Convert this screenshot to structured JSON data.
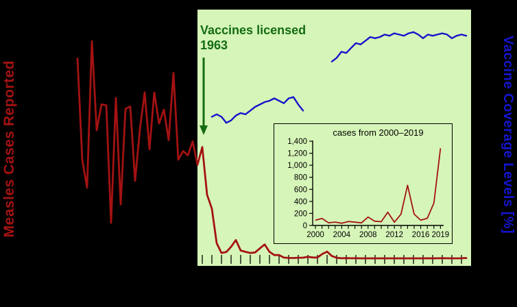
{
  "chart_data": [
    {
      "type": "line",
      "ylabel_left": "Measles Cases Reported",
      "ylabel_left_color": "#a31212",
      "ylabel_right": "Vaccine Coverage Levels [%]",
      "ylabel_right_color": "#1414cc",
      "x_range": [
        1938,
        2020
      ],
      "cases_axis_range": [
        0,
        900000
      ],
      "coverage_axis_range": [
        0,
        100
      ],
      "grid": false,
      "x_ticks": {
        "from": 1964,
        "to": 2018,
        "step": 2
      },
      "shaded_region": {
        "from": 1963,
        "to": 2020,
        "color": "#d6f5b8"
      },
      "annotation": {
        "line1": "Vaccines licensed",
        "line2": "1963",
        "color": "#146b14",
        "arrow_year": 1963
      },
      "series": [
        {
          "name": "measles-cases-reported",
          "axis": "cases",
          "color": "#a31212",
          "width": 2.8,
          "x": [
            1938,
            1939,
            1940,
            1941,
            1942,
            1943,
            1944,
            1945,
            1946,
            1947,
            1948,
            1949,
            1950,
            1951,
            1952,
            1953,
            1954,
            1955,
            1956,
            1957,
            1958,
            1959,
            1960,
            1961,
            1962,
            1963,
            1964,
            1965,
            1966,
            1967,
            1968,
            1969,
            1970,
            1971,
            1972,
            1973,
            1974,
            1975,
            1976,
            1977,
            1978,
            1979,
            1980,
            1981,
            1982,
            1983,
            1984,
            1985,
            1986,
            1987,
            1988,
            1989,
            1990,
            1991,
            1992,
            1993,
            1994,
            1995,
            1996,
            1997,
            1998,
            1999,
            2000,
            2001,
            2002,
            2003,
            2004,
            2005,
            2006,
            2007,
            2008,
            2009,
            2010,
            2011,
            2012,
            2013,
            2014,
            2015,
            2016,
            2017,
            2018,
            2019
          ],
          "y": [
            822811,
            404831,
            291162,
            894134,
            527347,
            633627,
            630291,
            146013,
            659843,
            222375,
            615104,
            625281,
            319124,
            530118,
            683077,
            449146,
            682720,
            555156,
            611936,
            486799,
            763094,
            406162,
            441703,
            423919,
            481530,
            385156,
            458083,
            261904,
            204136,
            62705,
            22231,
            25826,
            47351,
            75290,
            32275,
            26690,
            22094,
            24374,
            41126,
            57345,
            26871,
            13597,
            13506,
            3124,
            1714,
            1497,
            2587,
            2822,
            6282,
            3655,
            3396,
            18193,
            27786,
            9643,
            2237,
            312,
            963,
            309,
            508,
            138,
            100,
            100,
            86,
            116,
            44,
            56,
            37,
            66,
            55,
            43,
            140,
            71,
            63,
            220,
            55,
            187,
            667,
            188,
            86,
            120,
            372,
            1282
          ]
        },
        {
          "name": "vaccine-coverage-early",
          "axis": "coverage",
          "color": "#1414cc",
          "width": 2.4,
          "x": [
            1966,
            1967,
            1968,
            1969,
            1970,
            1971,
            1972,
            1973,
            1974,
            1975,
            1976,
            1977,
            1978,
            1979,
            1980,
            1981,
            1982,
            1983,
            1984,
            1985
          ],
          "y": [
            58,
            59,
            58,
            55.5,
            56.5,
            58.5,
            59.5,
            59,
            60.5,
            62,
            63,
            64,
            64.5,
            65.5,
            64.5,
            63.5,
            65.5,
            66,
            63,
            60.5
          ]
        },
        {
          "name": "vaccine-coverage-late",
          "axis": "coverage",
          "color": "#1414cc",
          "width": 2.4,
          "x": [
            1991,
            1992,
            1993,
            1994,
            1995,
            1996,
            1997,
            1998,
            1999,
            2000,
            2001,
            2002,
            2003,
            2004,
            2005,
            2006,
            2007,
            2008,
            2009,
            2010,
            2011,
            2012,
            2013,
            2014,
            2015,
            2016,
            2017,
            2018,
            2019
          ],
          "y": [
            80.5,
            82,
            84.5,
            84,
            86,
            88,
            87.5,
            89,
            90.5,
            90,
            90.5,
            91.5,
            91,
            92,
            91.5,
            91,
            92,
            92.5,
            91.5,
            90,
            91.5,
            91,
            91.5,
            92,
            91.5,
            90,
            91,
            91.5,
            91
          ]
        }
      ]
    },
    {
      "type": "line",
      "title": "cases from 2000–2019",
      "series_color": "#a31212",
      "x": [
        2000,
        2001,
        2002,
        2003,
        2004,
        2005,
        2006,
        2007,
        2008,
        2009,
        2010,
        2011,
        2012,
        2013,
        2014,
        2015,
        2016,
        2017,
        2018,
        2019
      ],
      "y": [
        86,
        116,
        44,
        56,
        37,
        66,
        55,
        43,
        140,
        71,
        63,
        220,
        55,
        187,
        667,
        188,
        86,
        120,
        372,
        1282
      ],
      "ylim": [
        0,
        1400
      ],
      "y_ticks": [
        0,
        200,
        400,
        600,
        800,
        1000,
        1200,
        1400
      ],
      "y_tick_labels": [
        "0",
        "200",
        "400",
        "600",
        "800",
        "1,000",
        "1,200",
        "1,400"
      ],
      "x_axis_years": [
        2000,
        2019
      ],
      "x_tick_years": [
        2000,
        2004,
        2008,
        2012,
        2016,
        2019
      ],
      "x_tick_labels": [
        "2000",
        "2004",
        "2008",
        "2012",
        "2016",
        "2019"
      ]
    }
  ]
}
